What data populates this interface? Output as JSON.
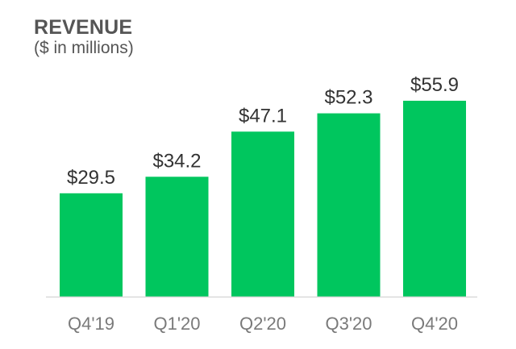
{
  "header": {
    "title": "REVENUE",
    "subtitle": "($ in millions)"
  },
  "chart_data": {
    "type": "bar",
    "title": "REVENUE",
    "subtitle": "($ in millions)",
    "categories": [
      "Q4'19",
      "Q1'20",
      "Q2'20",
      "Q3'20",
      "Q4'20"
    ],
    "values": [
      29.5,
      34.2,
      47.1,
      52.3,
      55.9
    ],
    "value_labels": [
      "$29.5",
      "$34.2",
      "$47.1",
      "$52.3",
      "$55.9"
    ],
    "ylim": [
      0,
      55.9
    ],
    "grid": false,
    "legend": "none",
    "bar_color": "#00c65e",
    "axis_color": "#d9d9d9"
  }
}
